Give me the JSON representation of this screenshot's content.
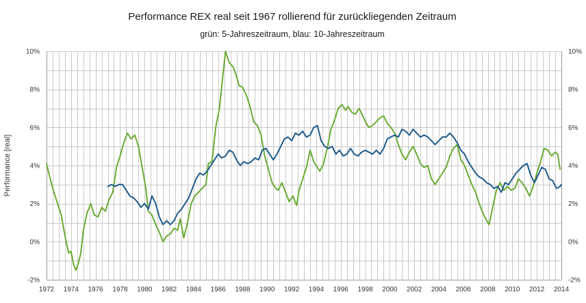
{
  "chart_data": {
    "type": "line",
    "title": "Performance REX real seit 1967 rollierend für zurückliegenden Zeitraum",
    "subtitle": "grün: 5-Jahreszeitraum,  blau: 10-Jahreszeitraum",
    "xlabel": "",
    "ylabel": "Performance [real]",
    "xlim": [
      1972,
      2014
    ],
    "ylim": [
      -2,
      10
    ],
    "x_ticks": [
      "1972",
      "1974",
      "1976",
      "1978",
      "1980",
      "1982",
      "1984",
      "1986",
      "1988",
      "1990",
      "1992",
      "1994",
      "1996",
      "1998",
      "2000",
      "2002",
      "2004",
      "2006",
      "2008",
      "2010",
      "2012",
      "2014"
    ],
    "y_ticks": [
      {
        "value": -2,
        "label": "-2%"
      },
      {
        "value": 0,
        "label": "0%"
      },
      {
        "value": 2,
        "label": "2%"
      },
      {
        "value": 4,
        "label": "4%"
      },
      {
        "value": 6,
        "label": "6%"
      },
      {
        "value": 8,
        "label": "8%"
      },
      {
        "value": 10,
        "label": "10%"
      }
    ],
    "grid": true,
    "series": [
      {
        "name": "5-Jahreszeitraum",
        "color": "#6aaa32",
        "points": [
          [
            1972.0,
            4.1
          ],
          [
            1972.3,
            3.3
          ],
          [
            1972.6,
            2.6
          ],
          [
            1972.9,
            2.0
          ],
          [
            1973.2,
            1.4
          ],
          [
            1973.5,
            0.3
          ],
          [
            1973.8,
            -0.6
          ],
          [
            1974.0,
            -0.5
          ],
          [
            1974.2,
            -1.2
          ],
          [
            1974.4,
            -1.5
          ],
          [
            1974.6,
            -1.1
          ],
          [
            1974.8,
            -0.6
          ],
          [
            1975.0,
            0.6
          ],
          [
            1975.3,
            1.5
          ],
          [
            1975.6,
            2.0
          ],
          [
            1975.9,
            1.4
          ],
          [
            1976.2,
            1.3
          ],
          [
            1976.5,
            1.8
          ],
          [
            1976.8,
            1.6
          ],
          [
            1977.1,
            2.2
          ],
          [
            1977.4,
            2.6
          ],
          [
            1977.7,
            3.9
          ],
          [
            1978.0,
            4.5
          ],
          [
            1978.3,
            5.2
          ],
          [
            1978.6,
            5.7
          ],
          [
            1978.9,
            5.4
          ],
          [
            1979.2,
            5.6
          ],
          [
            1979.5,
            5.0
          ],
          [
            1979.8,
            3.9
          ],
          [
            1980.1,
            2.8
          ],
          [
            1980.3,
            1.6
          ],
          [
            1980.6,
            1.4
          ],
          [
            1980.9,
            0.9
          ],
          [
            1981.2,
            0.5
          ],
          [
            1981.5,
            0.0
          ],
          [
            1981.8,
            0.3
          ],
          [
            1982.1,
            0.4
          ],
          [
            1982.4,
            0.7
          ],
          [
            1982.7,
            0.6
          ],
          [
            1982.9,
            1.2
          ],
          [
            1983.2,
            0.2
          ],
          [
            1983.5,
            1.0
          ],
          [
            1983.8,
            2.0
          ],
          [
            1984.1,
            2.4
          ],
          [
            1984.4,
            2.6
          ],
          [
            1984.7,
            2.8
          ],
          [
            1985.0,
            3.0
          ],
          [
            1985.2,
            4.1
          ],
          [
            1985.5,
            4.2
          ],
          [
            1985.8,
            6.0
          ],
          [
            1986.1,
            7.0
          ],
          [
            1986.4,
            8.8
          ],
          [
            1986.6,
            10.0
          ],
          [
            1986.9,
            9.4
          ],
          [
            1987.2,
            9.2
          ],
          [
            1987.5,
            8.7
          ],
          [
            1987.7,
            8.2
          ],
          [
            1988.0,
            8.1
          ],
          [
            1988.3,
            7.7
          ],
          [
            1988.6,
            7.1
          ],
          [
            1988.9,
            6.3
          ],
          [
            1989.2,
            6.1
          ],
          [
            1989.5,
            5.6
          ],
          [
            1989.8,
            4.5
          ],
          [
            1990.1,
            3.8
          ],
          [
            1990.4,
            3.1
          ],
          [
            1990.7,
            2.8
          ],
          [
            1990.9,
            2.7
          ],
          [
            1991.2,
            3.1
          ],
          [
            1991.5,
            2.6
          ],
          [
            1991.8,
            2.1
          ],
          [
            1992.1,
            2.4
          ],
          [
            1992.4,
            1.9
          ],
          [
            1992.6,
            2.7
          ],
          [
            1992.9,
            3.3
          ],
          [
            1993.2,
            3.9
          ],
          [
            1993.5,
            4.8
          ],
          [
            1993.8,
            4.2
          ],
          [
            1994.0,
            4.0
          ],
          [
            1994.3,
            3.7
          ],
          [
            1994.6,
            4.1
          ],
          [
            1994.9,
            4.9
          ],
          [
            1995.2,
            5.9
          ],
          [
            1995.5,
            6.4
          ],
          [
            1995.8,
            7.0
          ],
          [
            1996.1,
            7.2
          ],
          [
            1996.4,
            6.9
          ],
          [
            1996.6,
            7.1
          ],
          [
            1996.9,
            6.8
          ],
          [
            1997.2,
            6.7
          ],
          [
            1997.5,
            7.0
          ],
          [
            1997.8,
            6.6
          ],
          [
            1998.1,
            6.2
          ],
          [
            1998.3,
            6.0
          ],
          [
            1998.6,
            6.1
          ],
          [
            1998.9,
            6.3
          ],
          [
            1999.2,
            6.5
          ],
          [
            1999.5,
            6.6
          ],
          [
            1999.8,
            6.2
          ],
          [
            2000.1,
            6.0
          ],
          [
            2000.4,
            5.7
          ],
          [
            2000.7,
            5.1
          ],
          [
            2001.0,
            4.6
          ],
          [
            2001.3,
            4.3
          ],
          [
            2001.6,
            4.7
          ],
          [
            2001.9,
            5.0
          ],
          [
            2002.2,
            4.6
          ],
          [
            2002.5,
            4.1
          ],
          [
            2002.8,
            3.9
          ],
          [
            2003.1,
            4.0
          ],
          [
            2003.4,
            3.3
          ],
          [
            2003.7,
            3.0
          ],
          [
            2004.0,
            3.3
          ],
          [
            2004.3,
            3.6
          ],
          [
            2004.6,
            3.9
          ],
          [
            2004.9,
            4.5
          ],
          [
            2005.2,
            4.9
          ],
          [
            2005.5,
            5.1
          ],
          [
            2005.8,
            4.3
          ],
          [
            2006.1,
            4.0
          ],
          [
            2006.4,
            3.5
          ],
          [
            2006.7,
            3.0
          ],
          [
            2007.0,
            2.6
          ],
          [
            2007.3,
            2.0
          ],
          [
            2007.6,
            1.5
          ],
          [
            2007.9,
            1.1
          ],
          [
            2008.1,
            0.9
          ],
          [
            2008.4,
            1.8
          ],
          [
            2008.7,
            2.7
          ],
          [
            2009.0,
            3.1
          ],
          [
            2009.3,
            2.7
          ],
          [
            2009.6,
            2.9
          ],
          [
            2009.9,
            2.7
          ],
          [
            2010.2,
            2.8
          ],
          [
            2010.5,
            3.3
          ],
          [
            2010.8,
            3.1
          ],
          [
            2011.1,
            2.8
          ],
          [
            2011.4,
            2.4
          ],
          [
            2011.7,
            2.9
          ],
          [
            2012.0,
            3.6
          ],
          [
            2012.3,
            4.2
          ],
          [
            2012.6,
            4.9
          ],
          [
            2012.9,
            4.8
          ],
          [
            2013.2,
            4.5
          ],
          [
            2013.5,
            4.7
          ],
          [
            2013.7,
            4.6
          ],
          [
            2013.9,
            3.8
          ]
        ]
      },
      {
        "name": "10-Jahreszeitraum",
        "color": "#1e5a8c",
        "points": [
          [
            1977.0,
            2.9
          ],
          [
            1977.3,
            3.0
          ],
          [
            1977.6,
            2.9
          ],
          [
            1977.9,
            3.0
          ],
          [
            1978.2,
            3.0
          ],
          [
            1978.5,
            2.7
          ],
          [
            1978.8,
            2.4
          ],
          [
            1979.1,
            2.3
          ],
          [
            1979.4,
            2.1
          ],
          [
            1979.7,
            1.8
          ],
          [
            1980.0,
            2.0
          ],
          [
            1980.3,
            1.7
          ],
          [
            1980.6,
            2.4
          ],
          [
            1980.9,
            2.0
          ],
          [
            1981.2,
            1.3
          ],
          [
            1981.5,
            0.9
          ],
          [
            1981.8,
            1.1
          ],
          [
            1982.1,
            0.9
          ],
          [
            1982.4,
            1.1
          ],
          [
            1982.7,
            1.5
          ],
          [
            1983.0,
            1.7
          ],
          [
            1983.3,
            2.0
          ],
          [
            1983.6,
            2.3
          ],
          [
            1983.9,
            2.8
          ],
          [
            1984.2,
            3.3
          ],
          [
            1984.5,
            3.6
          ],
          [
            1984.8,
            3.5
          ],
          [
            1985.1,
            3.7
          ],
          [
            1985.4,
            4.0
          ],
          [
            1985.7,
            4.3
          ],
          [
            1986.0,
            4.6
          ],
          [
            1986.3,
            4.4
          ],
          [
            1986.6,
            4.5
          ],
          [
            1986.9,
            4.8
          ],
          [
            1987.2,
            4.7
          ],
          [
            1987.5,
            4.3
          ],
          [
            1987.8,
            4.0
          ],
          [
            1988.1,
            4.2
          ],
          [
            1988.4,
            4.1
          ],
          [
            1988.7,
            4.2
          ],
          [
            1989.0,
            4.4
          ],
          [
            1989.3,
            4.3
          ],
          [
            1989.6,
            4.8
          ],
          [
            1989.9,
            4.9
          ],
          [
            1990.2,
            4.6
          ],
          [
            1990.5,
            4.3
          ],
          [
            1990.8,
            4.6
          ],
          [
            1991.1,
            5.0
          ],
          [
            1991.4,
            5.4
          ],
          [
            1991.7,
            5.5
          ],
          [
            1992.0,
            5.3
          ],
          [
            1992.3,
            5.7
          ],
          [
            1992.6,
            5.6
          ],
          [
            1992.9,
            5.8
          ],
          [
            1993.2,
            5.5
          ],
          [
            1993.5,
            5.6
          ],
          [
            1993.8,
            6.0
          ],
          [
            1994.1,
            6.1
          ],
          [
            1994.4,
            5.3
          ],
          [
            1994.7,
            5.0
          ],
          [
            1995.0,
            4.9
          ],
          [
            1995.3,
            5.0
          ],
          [
            1995.6,
            4.6
          ],
          [
            1995.9,
            4.8
          ],
          [
            1996.2,
            4.5
          ],
          [
            1996.5,
            4.6
          ],
          [
            1996.8,
            4.9
          ],
          [
            1997.1,
            4.6
          ],
          [
            1997.4,
            4.5
          ],
          [
            1997.7,
            4.7
          ],
          [
            1998.0,
            4.8
          ],
          [
            1998.3,
            4.7
          ],
          [
            1998.6,
            4.6
          ],
          [
            1998.9,
            4.8
          ],
          [
            1999.2,
            4.6
          ],
          [
            1999.5,
            4.9
          ],
          [
            1999.8,
            5.4
          ],
          [
            2000.1,
            5.5
          ],
          [
            2000.4,
            5.6
          ],
          [
            2000.7,
            5.5
          ],
          [
            2001.0,
            5.9
          ],
          [
            2001.3,
            5.8
          ],
          [
            2001.6,
            5.6
          ],
          [
            2001.9,
            5.9
          ],
          [
            2002.2,
            5.7
          ],
          [
            2002.5,
            5.5
          ],
          [
            2002.8,
            5.6
          ],
          [
            2003.1,
            5.5
          ],
          [
            2003.4,
            5.3
          ],
          [
            2003.7,
            5.1
          ],
          [
            2004.0,
            5.3
          ],
          [
            2004.3,
            5.5
          ],
          [
            2004.6,
            5.5
          ],
          [
            2004.9,
            5.7
          ],
          [
            2005.2,
            5.5
          ],
          [
            2005.5,
            5.2
          ],
          [
            2005.8,
            4.8
          ],
          [
            2006.1,
            4.6
          ],
          [
            2006.4,
            4.2
          ],
          [
            2006.7,
            3.9
          ],
          [
            2007.0,
            3.6
          ],
          [
            2007.3,
            3.4
          ],
          [
            2007.6,
            3.3
          ],
          [
            2007.9,
            3.1
          ],
          [
            2008.2,
            3.0
          ],
          [
            2008.5,
            2.8
          ],
          [
            2008.8,
            2.9
          ],
          [
            2009.1,
            2.6
          ],
          [
            2009.4,
            3.1
          ],
          [
            2009.7,
            3.0
          ],
          [
            2010.0,
            3.3
          ],
          [
            2010.3,
            3.6
          ],
          [
            2010.6,
            3.8
          ],
          [
            2010.9,
            4.0
          ],
          [
            2011.2,
            4.1
          ],
          [
            2011.5,
            3.5
          ],
          [
            2011.8,
            3.1
          ],
          [
            2012.1,
            3.5
          ],
          [
            2012.4,
            3.9
          ],
          [
            2012.7,
            3.8
          ],
          [
            2013.0,
            3.3
          ],
          [
            2013.3,
            3.2
          ],
          [
            2013.6,
            2.8
          ],
          [
            2013.9,
            2.9
          ],
          [
            2014.0,
            3.0
          ]
        ]
      }
    ]
  }
}
